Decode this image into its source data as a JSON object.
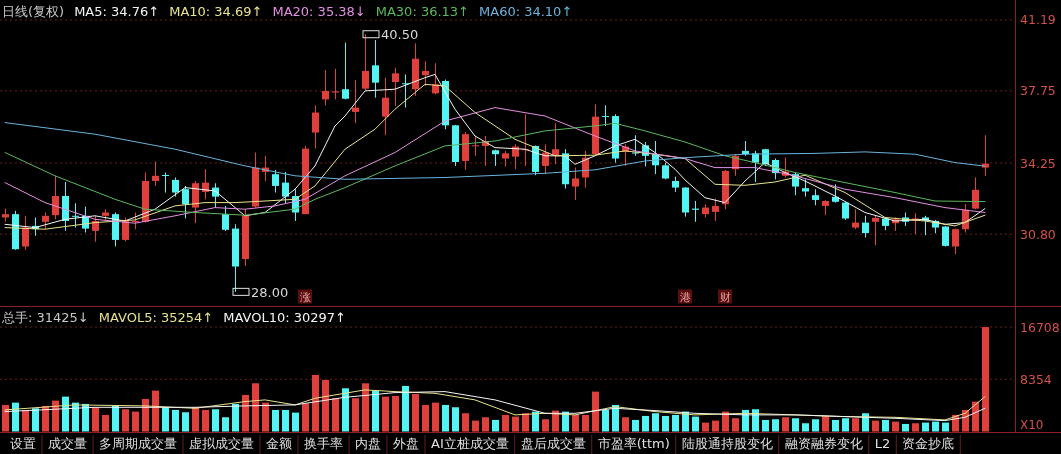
{
  "chart_data": [
    {
      "type": "candlestick",
      "title": "日线(复权)",
      "grid": "y",
      "tick_labels": "y",
      "categories": [
        null,
        null,
        null,
        null,
        null,
        null,
        null,
        null,
        null,
        null,
        null,
        null,
        null,
        null,
        null,
        null,
        null,
        null,
        null,
        null,
        null,
        null,
        null,
        null,
        null,
        null,
        null,
        null,
        null,
        null,
        "涨",
        null,
        null,
        null,
        null,
        null,
        null,
        null,
        null,
        null,
        null,
        null,
        null,
        null,
        null,
        null,
        null,
        null,
        null,
        null,
        null,
        null,
        null,
        null,
        null,
        null,
        null,
        null,
        null,
        null,
        null,
        null,
        null,
        null,
        null,
        null,
        null,
        null,
        "港",
        null,
        null,
        null,
        "财",
        null,
        null,
        null,
        null,
        null,
        null,
        null,
        null,
        null,
        null,
        null,
        null,
        null,
        null,
        null,
        null,
        null,
        null,
        null,
        null,
        null,
        null,
        null,
        null,
        null,
        null
      ],
      "ylim": [
        27.29,
        42.16
      ],
      "yticks": [
        {
          "value": 30.8,
          "label": "30.80"
        },
        34.25,
        37.75,
        41.19
      ],
      "ohlc": [
        [
          31.61,
          32.04,
          31.4,
          31.77
        ],
        [
          31.77,
          31.93,
          30.04,
          30.07
        ],
        [
          30.2,
          31.69,
          30.04,
          31.12
        ],
        [
          31.2,
          31.61,
          30.72,
          31.04
        ],
        [
          31.4,
          31.85,
          31.04,
          31.69
        ],
        [
          31.72,
          33.63,
          31.52,
          32.65
        ],
        [
          32.65,
          33.33,
          30.96,
          31.44
        ],
        [
          31.69,
          32.3,
          31.12,
          31.66
        ],
        [
          31.69,
          32.14,
          30.88,
          31.07
        ],
        [
          30.96,
          31.69,
          30.43,
          31.44
        ],
        [
          31.69,
          32.01,
          31.44,
          31.85
        ],
        [
          31.77,
          31.85,
          30.2,
          30.52
        ],
        [
          30.52,
          31.61,
          30.45,
          31.49
        ],
        [
          31.4,
          31.85,
          31.04,
          31.44
        ],
        [
          31.4,
          33.79,
          31.36,
          33.38
        ],
        [
          33.38,
          34.32,
          33.14,
          33.63
        ],
        [
          33.67,
          33.79,
          32.82,
          33.63
        ],
        [
          33.43,
          33.55,
          32.62,
          32.82
        ],
        [
          32.98,
          33.14,
          31.56,
          32.25
        ],
        [
          32.09,
          33.38,
          31.33,
          33.27
        ],
        [
          32.85,
          33.95,
          32.49,
          33.3
        ],
        [
          33.06,
          33.27,
          32.09,
          32.62
        ],
        [
          31.77,
          32.17,
          30.96,
          31.01
        ],
        [
          31.07,
          31.28,
          28.0,
          29.23
        ],
        [
          29.59,
          32.01,
          29.26,
          31.72
        ],
        [
          32.14,
          34.76,
          32.09,
          34.03
        ],
        [
          33.82,
          34.6,
          33.38,
          34.03
        ],
        [
          33.71,
          33.92,
          32.82,
          33.14
        ],
        [
          33.3,
          33.82,
          32.3,
          32.62
        ],
        [
          32.65,
          32.98,
          31.44,
          31.85
        ],
        [
          31.77,
          35.08,
          31.77,
          34.95
        ],
        [
          35.73,
          37.05,
          34.95,
          36.7
        ],
        [
          37.34,
          38.76,
          37.05,
          37.75
        ],
        [
          37.67,
          38.83,
          37.34,
          37.73
        ],
        [
          37.83,
          40.09,
          37.34,
          37.37
        ],
        [
          36.73,
          38.28,
          36.18,
          36.94
        ],
        [
          37.86,
          40.5,
          37.79,
          38.72
        ],
        [
          38.99,
          40.22,
          37.42,
          38.15
        ],
        [
          36.5,
          38.39,
          35.6,
          37.42
        ],
        [
          38.18,
          38.88,
          37.02,
          38.6
        ],
        [
          38.12,
          38.55,
          36.94,
          38.1
        ],
        [
          37.83,
          40.06,
          37.5,
          39.31
        ],
        [
          38.51,
          39.2,
          37.99,
          38.72
        ],
        [
          37.63,
          39.09,
          37.58,
          38.07
        ],
        [
          38.23,
          38.3,
          35.89,
          36.08
        ],
        [
          36.08,
          36.1,
          34.11,
          34.3
        ],
        [
          34.35,
          35.76,
          33.92,
          35.65
        ],
        [
          35.08,
          35.56,
          34.6,
          35.11
        ],
        [
          35.08,
          35.56,
          34.11,
          35.32
        ],
        [
          34.87,
          34.9,
          34.11,
          34.68
        ],
        [
          34.47,
          34.84,
          34.08,
          34.72
        ],
        [
          34.56,
          35.16,
          33.95,
          35.05
        ],
        [
          34.89,
          36.62,
          34.11,
          34.92
        ],
        [
          35.08,
          35.1,
          33.66,
          33.82
        ],
        [
          34.11,
          35.16,
          33.71,
          34.76
        ],
        [
          34.63,
          36.18,
          34.19,
          34.92
        ],
        [
          34.72,
          34.92,
          33.01,
          33.22
        ],
        [
          33.11,
          34.03,
          32.46,
          33.5
        ],
        [
          33.55,
          34.84,
          33.06,
          34.51
        ],
        [
          34.68,
          37.1,
          34.6,
          36.5
        ],
        [
          36.53,
          37.05,
          36.05,
          36.5
        ],
        [
          36.53,
          36.62,
          34.27,
          34.47
        ],
        [
          34.79,
          35.16,
          34.11,
          35.05
        ],
        [
          34.76,
          35.6,
          34.6,
          34.72
        ],
        [
          35.11,
          35.27,
          34.08,
          34.6
        ],
        [
          34.68,
          35.32,
          33.71,
          34.14
        ],
        [
          34.14,
          34.27,
          33.46,
          33.5
        ],
        [
          33.38,
          33.59,
          32.85,
          33.06
        ],
        [
          33.06,
          33.08,
          31.65,
          31.85
        ],
        [
          32.04,
          32.41,
          31.4,
          31.98
        ],
        [
          31.77,
          32.25,
          31.61,
          32.09
        ],
        [
          31.88,
          32.53,
          31.44,
          32.17
        ],
        [
          32.25,
          33.92,
          32.01,
          33.87
        ],
        [
          33.95,
          34.68,
          33.63,
          34.6
        ],
        [
          34.84,
          35.32,
          34.6,
          34.68
        ],
        [
          34.72,
          34.84,
          33.33,
          34.27
        ],
        [
          34.92,
          34.94,
          34.11,
          34.19
        ],
        [
          34.4,
          34.47,
          33.46,
          33.76
        ],
        [
          33.63,
          34.51,
          33.55,
          33.84
        ],
        [
          33.71,
          33.79,
          32.69,
          33.11
        ],
        [
          33.03,
          33.46,
          32.62,
          32.87
        ],
        [
          32.69,
          32.98,
          32.2,
          32.46
        ],
        [
          32.17,
          32.45,
          31.72,
          32.41
        ],
        [
          32.61,
          33.22,
          32.33,
          32.37
        ],
        [
          32.33,
          32.37,
          31.49,
          31.56
        ],
        [
          31.12,
          32.01,
          31.04,
          31.36
        ],
        [
          31.36,
          31.69,
          30.64,
          30.85
        ],
        [
          31.4,
          31.69,
          30.26,
          31.59
        ],
        [
          31.56,
          31.61,
          30.99,
          31.2
        ],
        [
          31.33,
          31.61,
          30.96,
          31.52
        ],
        [
          31.61,
          31.85,
          31.2,
          31.4
        ],
        [
          31.46,
          31.82,
          30.8,
          31.56
        ],
        [
          31.61,
          31.69,
          30.75,
          31.44
        ],
        [
          31.44,
          31.49,
          30.85,
          31.12
        ],
        [
          31.17,
          31.2,
          30.2,
          30.23
        ],
        [
          30.2,
          31.07,
          29.83,
          31.04
        ],
        [
          31.04,
          32.25,
          30.88,
          31.98
        ],
        [
          32.04,
          33.55,
          32.01,
          32.95
        ],
        [
          34.03,
          35.6,
          33.63,
          34.22
        ]
      ],
      "colors": [
        "#e0403c",
        "#54f4f4",
        "#e0403c",
        "#54f4f4",
        "#e0403c",
        "#e0403c",
        "#54f4f4",
        "#54f4f4",
        "#54f4f4",
        "#e0403c",
        "#e0403c",
        "#54f4f4",
        "#e0403c",
        "#e0403c",
        "#e0403c",
        "#e0403c",
        "#54f4f4",
        "#54f4f4",
        "#54f4f4",
        "#e0403c",
        "#e0403c",
        "#54f4f4",
        "#54f4f4",
        "#54f4f4",
        "#e0403c",
        "#e0403c",
        "#e0403c",
        "#54f4f4",
        "#54f4f4",
        "#54f4f4",
        "#e0403c",
        "#e0403c",
        "#e0403c",
        "#e0403c",
        "#54f4f4",
        "#e0403c",
        "#e0403c",
        "#54f4f4",
        "#e0403c",
        "#e0403c",
        "#54f4f4",
        "#e0403c",
        "#e0403c",
        "#e0403c",
        "#54f4f4",
        "#54f4f4",
        "#e0403c",
        "#e0403c",
        "#e0403c",
        "#54f4f4",
        "#e0403c",
        "#e0403c",
        "#e0403c",
        "#54f4f4",
        "#e0403c",
        "#e0403c",
        "#54f4f4",
        "#e0403c",
        "#e0403c",
        "#e0403c",
        "#54f4f4",
        "#54f4f4",
        "#e0403c",
        "#54f4f4",
        "#54f4f4",
        "#54f4f4",
        "#54f4f4",
        "#54f4f4",
        "#54f4f4",
        "#54f4f4",
        "#e0403c",
        "#e0403c",
        "#e0403c",
        "#e0403c",
        "#54f4f4",
        "#54f4f4",
        "#54f4f4",
        "#54f4f4",
        "#e0403c",
        "#54f4f4",
        "#54f4f4",
        "#54f4f4",
        "#e0403c",
        "#54f4f4",
        "#54f4f4",
        "#e0403c",
        "#54f4f4",
        "#e0403c",
        "#54f4f4",
        "#e0403c",
        "#54f4f4",
        "#e0403c",
        "#54f4f4",
        "#54f4f4",
        "#54f4f4",
        "#e0403c",
        "#e0403c",
        "#e0403c",
        "#e0403c"
      ],
      "series": [
        {
          "name": "MA5: 34.76↑",
          "type": "line",
          "color": "#f4f4f4",
          "values": [
            31.28,
            null,
            null,
            31.12,
            null,
            null,
            31.52,
            null,
            null,
            31.69,
            null,
            null,
            31.44,
            null,
            null,
            32.01,
            null,
            null,
            33.06,
            null,
            null,
            32.9,
            null,
            null,
            31.69,
            null,
            31.85,
            null,
            null,
            32.98,
            null,
            34.11,
            null,
            36.05,
            36.53,
            null,
            37.75,
            null,
            null,
            37.83,
            null,
            null,
            38.39,
            38.55,
            null,
            36.86,
            null,
            35.56,
            null,
            35.0,
            null,
            null,
            34.92,
            null,
            34.6,
            null,
            34.6,
            34.19,
            null,
            34.6,
            null,
            35.08,
            null,
            35.4,
            null,
            34.76,
            null,
            33.95,
            33.43,
            null,
            32.57,
            null,
            32.33,
            null,
            33.38,
            null,
            34.27,
            null,
            33.79,
            null,
            33.38,
            null,
            null,
            32.65,
            null,
            null,
            31.85,
            null,
            null,
            31.44,
            null,
            null,
            31.52,
            null,
            31.28,
            null,
            31.36,
            null,
            32.04
          ]
        },
        {
          "name": "MA10: 34.69↑",
          "type": "line",
          "color": "#e8e38c",
          "values": [
            31.12,
            null,
            null,
            null,
            31.04,
            null,
            null,
            null,
            null,
            31.36,
            null,
            null,
            null,
            31.49,
            null,
            null,
            null,
            32.17,
            null,
            null,
            32.33,
            null,
            null,
            32.33,
            null,
            null,
            32.41,
            null,
            null,
            32.49,
            null,
            33.14,
            null,
            null,
            34.92,
            null,
            null,
            35.89,
            null,
            36.86,
            null,
            null,
            38.07,
            null,
            37.99,
            null,
            null,
            36.7,
            null,
            null,
            null,
            35.4,
            null,
            null,
            null,
            34.6,
            null,
            null,
            null,
            34.63,
            null,
            null,
            34.84,
            null,
            null,
            34.68,
            null,
            null,
            34.47,
            null,
            null,
            33.22,
            null,
            null,
            33.17,
            null,
            null,
            33.33,
            null,
            null,
            33.66,
            null,
            null,
            null,
            32.82,
            null,
            null,
            null,
            31.61,
            null,
            null,
            null,
            31.44,
            null,
            null,
            31.2,
            null,
            null,
            31.72
          ]
        },
        {
          "name": "MA20: 35.38↓",
          "type": "line",
          "color": "#e38fe3",
          "values": [
            33.3,
            null,
            null,
            null,
            32.33,
            null,
            null,
            null,
            null,
            31.52,
            null,
            null,
            null,
            31.33,
            null,
            null,
            null,
            31.69,
            null,
            null,
            null,
            32.09,
            null,
            null,
            32.01,
            null,
            null,
            32.17,
            null,
            null,
            32.49,
            null,
            null,
            null,
            33.63,
            null,
            null,
            null,
            null,
            34.76,
            null,
            null,
            null,
            null,
            36.29,
            null,
            null,
            null,
            null,
            36.94,
            null,
            null,
            null,
            null,
            36.53,
            null,
            null,
            null,
            null,
            35.56,
            null,
            null,
            null,
            34.84,
            null,
            null,
            null,
            null,
            34.47,
            null,
            null,
            34.03,
            null,
            null,
            null,
            34.03,
            null,
            null,
            null,
            33.63,
            null,
            null,
            null,
            null,
            32.98,
            null,
            null,
            null,
            null,
            32.57,
            null,
            null,
            null,
            null,
            32.09,
            null,
            null,
            null,
            31.85
          ]
        },
        {
          "name": "MA30: 36.13↑",
          "type": "line",
          "color": "#5cb85c",
          "values": [
            34.76,
            null,
            null,
            null,
            null,
            33.63,
            null,
            null,
            null,
            null,
            null,
            32.49,
            null,
            null,
            32.01,
            null,
            null,
            null,
            null,
            31.85,
            null,
            null,
            null,
            null,
            31.72,
            null,
            null,
            null,
            null,
            32.01,
            null,
            32.49,
            null,
            null,
            33.06,
            null,
            null,
            null,
            null,
            34.11,
            null,
            null,
            null,
            null,
            35.08,
            null,
            null,
            null,
            null,
            35.32,
            null,
            null,
            null,
            null,
            35.81,
            null,
            null,
            null,
            null,
            36.05,
            null,
            36.18,
            null,
            null,
            35.81,
            null,
            null,
            null,
            35.27,
            null,
            null,
            null,
            34.6,
            null,
            null,
            34.27,
            null,
            null,
            null,
            33.79,
            null,
            null,
            null,
            null,
            33.3,
            null,
            null,
            null,
            null,
            32.82,
            null,
            null,
            null,
            32.41,
            null,
            null,
            null,
            null,
            32.38
          ]
        },
        {
          "name": "MA60: 34.10↑",
          "type": "line",
          "color": "#6ab4dc",
          "values": [
            36.21,
            null,
            null,
            null,
            null,
            null,
            null,
            null,
            null,
            35.65,
            null,
            null,
            null,
            null,
            null,
            null,
            null,
            34.92,
            null,
            null,
            null,
            null,
            null,
            null,
            34.11,
            null,
            null,
            null,
            null,
            33.63,
            null,
            null,
            null,
            null,
            33.46,
            null,
            null,
            null,
            null,
            null,
            null,
            null,
            null,
            null,
            33.55,
            null,
            null,
            null,
            null,
            null,
            null,
            null,
            null,
            null,
            33.75,
            null,
            null,
            null,
            null,
            33.92,
            null,
            null,
            null,
            null,
            34.35,
            null,
            null,
            null,
            34.51,
            null,
            null,
            null,
            null,
            null,
            34.68,
            null,
            null,
            null,
            null,
            null,
            null,
            34.72,
            null,
            null,
            null,
            null,
            34.79,
            null,
            null,
            null,
            null,
            34.68,
            null,
            null,
            null,
            34.27,
            null,
            null,
            34.1
          ]
        }
      ],
      "annotations": [
        "40.50",
        "28.00"
      ]
    },
    {
      "type": "bar",
      "title": "总手: 31425↓",
      "grid": "y",
      "tick_labels": "y",
      "ylabel": "X10",
      "categories": [
        null,
        null,
        null,
        null,
        null,
        null,
        null,
        null,
        null,
        null,
        null,
        null,
        null,
        null,
        null,
        null,
        null,
        null,
        null,
        null,
        null,
        null,
        null,
        null,
        null,
        null,
        null,
        null,
        null,
        null,
        null,
        null,
        null,
        null,
        null,
        null,
        null,
        null,
        null,
        null,
        null,
        null,
        null,
        null,
        null,
        null,
        null,
        null,
        null,
        null,
        null,
        null,
        null,
        null,
        null,
        null,
        null,
        null,
        null,
        null,
        null,
        null,
        null,
        null,
        null,
        null,
        null,
        null,
        null,
        null,
        null,
        null,
        null,
        null,
        null,
        null,
        null,
        null,
        null,
        null,
        null,
        null,
        null,
        null,
        null,
        null,
        null,
        null,
        null,
        null,
        null,
        null,
        null,
        null,
        null,
        null,
        null,
        null,
        null
      ],
      "ylim": [
        0,
        20000
      ],
      "yticks": [
        8354,
        16708
      ],
      "values": [
        4250,
        4620,
        3450,
        3720,
        4090,
        4945,
        5580,
        4620,
        4410,
        3880,
        2650,
        4090,
        3560,
        3185,
        5210,
        6540,
        3880,
        3450,
        3080,
        3880,
        3450,
        3560,
        2280,
        4410,
        5850,
        7715,
        4620,
        3450,
        3450,
        3025,
        4515,
        9050,
        8250,
        5320,
        6915,
        5320,
        7715,
        6540,
        5580,
        5690,
        7290,
        6010,
        4250,
        4620,
        4250,
        3880,
        2920,
        1745,
        2280,
        1850,
        2650,
        2385,
        2920,
        3185,
        1960,
        3345,
        3185,
        2650,
        2650,
        6380,
        3450,
        4250,
        2280,
        1850,
        2490,
        2920,
        2490,
        2650,
        3185,
        2385,
        1425,
        1745,
        3185,
        2120,
        3450,
        3560,
        1850,
        1960,
        2280,
        2120,
        1320,
        1960,
        2490,
        1850,
        2120,
        2120,
        2920,
        1745,
        1850,
        1585,
        1210,
        1320,
        1425,
        1585,
        1425,
        2650,
        3450,
        4780,
        16708
      ],
      "colors": [
        "#e0403c",
        "#54f4f4",
        "#e0403c",
        "#54f4f4",
        "#e0403c",
        "#e0403c",
        "#54f4f4",
        "#54f4f4",
        "#54f4f4",
        "#e0403c",
        "#e0403c",
        "#54f4f4",
        "#e0403c",
        "#e0403c",
        "#e0403c",
        "#e0403c",
        "#54f4f4",
        "#54f4f4",
        "#54f4f4",
        "#e0403c",
        "#e0403c",
        "#54f4f4",
        "#54f4f4",
        "#54f4f4",
        "#e0403c",
        "#e0403c",
        "#e0403c",
        "#54f4f4",
        "#54f4f4",
        "#54f4f4",
        "#e0403c",
        "#e0403c",
        "#e0403c",
        "#e0403c",
        "#54f4f4",
        "#e0403c",
        "#e0403c",
        "#54f4f4",
        "#e0403c",
        "#e0403c",
        "#54f4f4",
        "#e0403c",
        "#e0403c",
        "#e0403c",
        "#54f4f4",
        "#54f4f4",
        "#e0403c",
        "#e0403c",
        "#e0403c",
        "#54f4f4",
        "#e0403c",
        "#e0403c",
        "#e0403c",
        "#54f4f4",
        "#e0403c",
        "#e0403c",
        "#54f4f4",
        "#e0403c",
        "#e0403c",
        "#e0403c",
        "#54f4f4",
        "#54f4f4",
        "#e0403c",
        "#54f4f4",
        "#54f4f4",
        "#54f4f4",
        "#54f4f4",
        "#54f4f4",
        "#54f4f4",
        "#54f4f4",
        "#e0403c",
        "#e0403c",
        "#e0403c",
        "#e0403c",
        "#54f4f4",
        "#54f4f4",
        "#54f4f4",
        "#54f4f4",
        "#e0403c",
        "#54f4f4",
        "#54f4f4",
        "#54f4f4",
        "#e0403c",
        "#54f4f4",
        "#54f4f4",
        "#e0403c",
        "#54f4f4",
        "#e0403c",
        "#54f4f4",
        "#e0403c",
        "#54f4f4",
        "#e0403c",
        "#54f4f4",
        "#54f4f4",
        "#54f4f4",
        "#e0403c",
        "#e0403c",
        "#e0403c",
        "#e0403c"
      ],
      "series": [
        {
          "name": "MAVOL5: 35254↑",
          "type": "line",
          "color": "#e8e38c",
          "values": [
            3450,
            null,
            null,
            null,
            null,
            null,
            null,
            4250,
            null,
            null,
            null,
            null,
            null,
            null,
            4090,
            null,
            null,
            null,
            null,
            3720,
            null,
            null,
            null,
            null,
            4780,
            null,
            5050,
            null,
            null,
            4250,
            null,
            5320,
            null,
            5850,
            null,
            null,
            6650,
            null,
            null,
            6380,
            null,
            null,
            null,
            6120,
            null,
            null,
            null,
            5050,
            null,
            null,
            null,
            2650,
            null,
            null,
            2920,
            null,
            null,
            2650,
            null,
            null,
            null,
            3985,
            null,
            null,
            null,
            3185,
            null,
            null,
            null,
            2650,
            null,
            null,
            null,
            null,
            2920,
            null,
            null,
            null,
            null,
            2650,
            null,
            null,
            null,
            null,
            2385,
            null,
            null,
            null,
            null,
            2280,
            null,
            null,
            null,
            null,
            1850,
            null,
            2920,
            null,
            5585
          ]
        },
        {
          "name": "MAVOL10: 30297↑",
          "type": "line",
          "color": "#f4f4f4",
          "values": [
            3185,
            null,
            null,
            null,
            null,
            null,
            null,
            null,
            null,
            3880,
            null,
            null,
            null,
            null,
            null,
            null,
            null,
            null,
            null,
            3880,
            null,
            null,
            null,
            null,
            4090,
            null,
            null,
            null,
            null,
            4250,
            null,
            null,
            null,
            null,
            5480,
            null,
            null,
            null,
            null,
            6225,
            null,
            null,
            null,
            null,
            6380,
            null,
            null,
            null,
            null,
            5050,
            null,
            null,
            null,
            null,
            2920,
            null,
            null,
            2920,
            null,
            null,
            null,
            3720,
            null,
            null,
            null,
            3345,
            null,
            null,
            null,
            2920,
            null,
            null,
            null,
            null,
            2650,
            null,
            null,
            null,
            null,
            2650,
            null,
            null,
            null,
            null,
            2385,
            null,
            null,
            null,
            null,
            2120,
            null,
            null,
            null,
            null,
            1745,
            null,
            2280,
            null,
            3720
          ]
        }
      ],
      "annotations": [
        "设置",
        "成交量",
        "多周期成交量",
        "虚拟成交量",
        "金额",
        "换手率",
        "内盘",
        "外盘",
        "AI立桩成交量",
        "盘后成交量",
        "市盈率(ttm)",
        "陆股通持股变化",
        "融资融券变化",
        "L2",
        "资金抄底"
      ]
    }
  ]
}
